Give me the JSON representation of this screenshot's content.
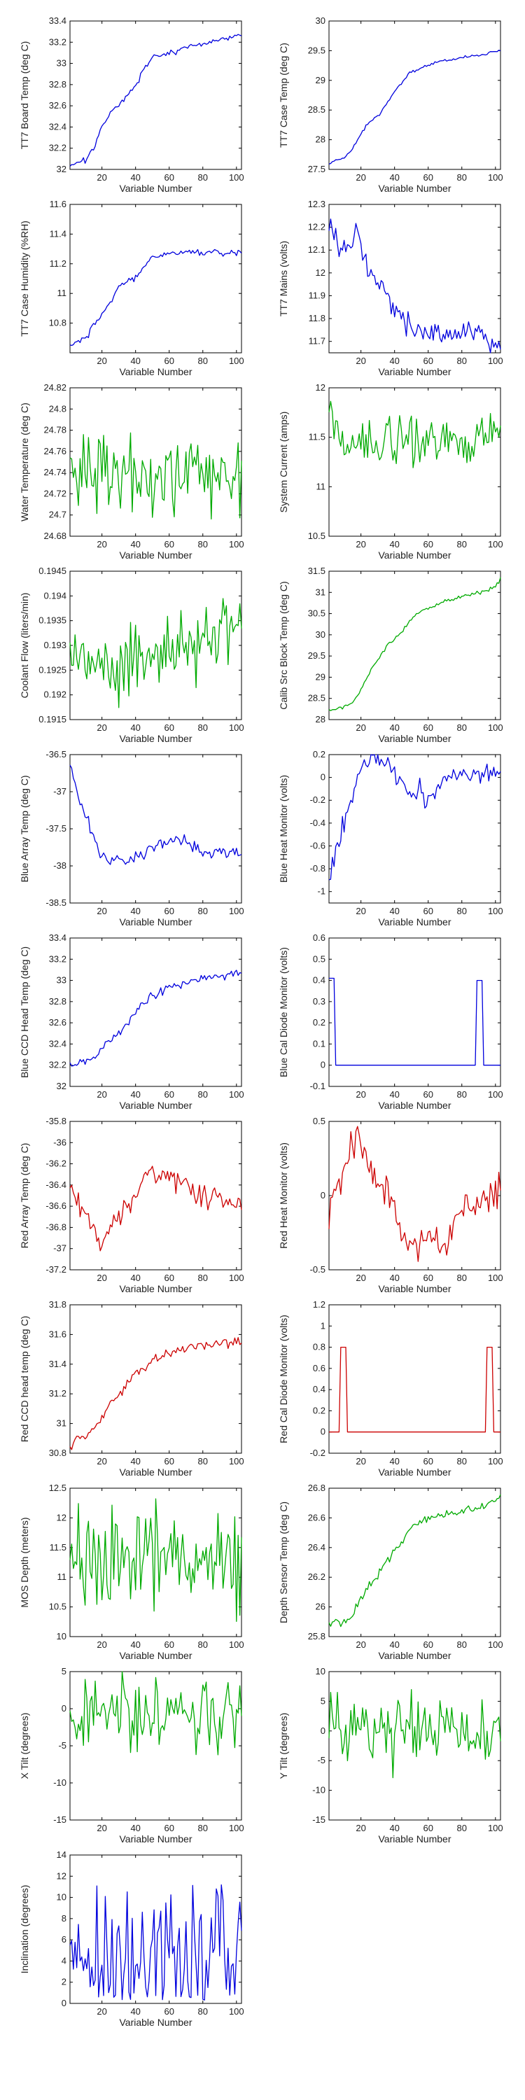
{
  "figure": {
    "background": "#ffffff",
    "layout": "2 columns x 11 rows of line plots"
  },
  "chart_data": [
    {
      "type": "line",
      "xlabel": "Variable Number",
      "ylabel": "TT7 Board Temp (deg C)",
      "color": "#0000dd",
      "xlim": [
        1,
        103
      ],
      "ylim": [
        32,
        33.4
      ],
      "xticks": [
        20,
        40,
        60,
        80,
        100
      ],
      "yticks": [
        32,
        32.2,
        32.4,
        32.6,
        32.8,
        33,
        33.2,
        33.4
      ],
      "x": [
        1,
        5,
        10,
        15,
        20,
        25,
        30,
        35,
        40,
        45,
        50,
        55,
        60,
        65,
        70,
        75,
        80,
        85,
        90,
        95,
        100,
        103
      ],
      "y": [
        32.03,
        32.07,
        32.1,
        32.2,
        32.4,
        32.55,
        32.6,
        32.7,
        32.8,
        32.95,
        33.05,
        33.07,
        33.1,
        33.12,
        33.15,
        33.17,
        33.18,
        33.2,
        33.22,
        33.24,
        33.26,
        33.27
      ],
      "noise": 0.012
    },
    {
      "type": "line",
      "xlabel": "Variable Number",
      "ylabel": "TT7 Case Temp (deg C)",
      "color": "#0000dd",
      "xlim": [
        1,
        103
      ],
      "ylim": [
        27.5,
        30
      ],
      "xticks": [
        20,
        40,
        60,
        80,
        100
      ],
      "yticks": [
        27.5,
        28,
        28.5,
        29,
        29.5,
        30
      ],
      "x": [
        1,
        5,
        10,
        15,
        20,
        25,
        30,
        35,
        40,
        45,
        50,
        55,
        60,
        65,
        70,
        75,
        80,
        85,
        90,
        95,
        100,
        103
      ],
      "y": [
        27.6,
        27.65,
        27.7,
        27.85,
        28.1,
        28.3,
        28.4,
        28.6,
        28.8,
        29.0,
        29.15,
        29.2,
        29.25,
        29.3,
        29.33,
        29.36,
        29.38,
        29.41,
        29.43,
        29.46,
        29.49,
        29.5
      ],
      "noise": 0.012
    },
    {
      "type": "line",
      "xlabel": "Variable Number",
      "ylabel": "TT7 Case Humidity (%RH)",
      "color": "#0000dd",
      "xlim": [
        1,
        103
      ],
      "ylim": [
        10.6,
        11.6
      ],
      "xticks": [
        20,
        40,
        60,
        80,
        100
      ],
      "yticks": [
        10.8,
        11,
        11.2,
        11.4,
        11.6
      ],
      "x": [
        1,
        5,
        10,
        15,
        20,
        25,
        30,
        35,
        40,
        45,
        50,
        55,
        60,
        65,
        70,
        75,
        80,
        85,
        90,
        95,
        100,
        103
      ],
      "y": [
        10.65,
        10.67,
        10.7,
        10.8,
        10.85,
        10.95,
        11.05,
        11.08,
        11.1,
        11.18,
        11.24,
        11.26,
        11.28,
        11.27,
        11.28,
        11.28,
        11.27,
        11.28,
        11.27,
        11.28,
        11.27,
        11.27
      ],
      "noise": 0.01
    },
    {
      "type": "line",
      "xlabel": "Variable Number",
      "ylabel": "TT7 Mains  (volts)",
      "color": "#0000dd",
      "xlim": [
        1,
        103
      ],
      "ylim": [
        11.65,
        12.3
      ],
      "xticks": [
        20,
        40,
        60,
        80,
        100
      ],
      "yticks": [
        11.7,
        11.8,
        11.9,
        12,
        12.1,
        12.2,
        12.3
      ],
      "x": [
        1,
        5,
        10,
        15,
        18,
        22,
        26,
        30,
        35,
        40,
        45,
        50,
        55,
        60,
        70,
        80,
        90,
        100,
        103
      ],
      "y": [
        12.2,
        12.15,
        12.12,
        12.12,
        12.2,
        12.05,
        12.0,
        11.95,
        11.9,
        11.85,
        11.8,
        11.75,
        11.76,
        11.73,
        11.74,
        11.75,
        11.72,
        11.7,
        11.7
      ],
      "noise": 0.025
    },
    {
      "type": "line",
      "xlabel": "Variable Number",
      "ylabel": "Water Temperature (deg C)",
      "color": "#00aa00",
      "xlim": [
        1,
        103
      ],
      "ylim": [
        24.68,
        24.82
      ],
      "xticks": [
        20,
        40,
        60,
        80,
        100
      ],
      "yticks": [
        24.68,
        24.7,
        24.72,
        24.74,
        24.76,
        24.78,
        24.8,
        24.82
      ],
      "x": [
        1,
        103
      ],
      "y": [
        24.745,
        24.74
      ],
      "noise": 0.018
    },
    {
      "type": "line",
      "xlabel": "Variable Number",
      "ylabel": "System Current (amps)",
      "color": "#00aa00",
      "xlim": [
        1,
        103
      ],
      "ylim": [
        10.5,
        12
      ],
      "xticks": [
        20,
        40,
        60,
        80,
        100
      ],
      "yticks": [
        10.5,
        11,
        11.5,
        12
      ],
      "x": [
        1,
        5,
        10,
        15,
        20,
        30,
        40,
        50,
        60,
        70,
        80,
        90,
        100,
        103
      ],
      "y": [
        11.8,
        11.6,
        11.5,
        11.3,
        11.45,
        11.5,
        11.45,
        11.5,
        11.45,
        11.5,
        11.45,
        11.5,
        11.55,
        11.6
      ],
      "noise": 0.12
    },
    {
      "type": "line",
      "xlabel": "Variable Number",
      "ylabel": "Coolant Flow (liters/min)",
      "color": "#00aa00",
      "xlim": [
        1,
        103
      ],
      "ylim": [
        0.1915,
        0.1945
      ],
      "xticks": [
        20,
        40,
        60,
        80,
        100
      ],
      "yticks": [
        0.1915,
        0.192,
        0.1925,
        0.193,
        0.1935,
        0.194,
        0.1945
      ],
      "x": [
        1,
        20,
        40,
        50,
        60,
        70,
        80,
        90,
        100,
        103
      ],
      "y": [
        0.1928,
        0.1926,
        0.1927,
        0.1928,
        0.1929,
        0.193,
        0.1932,
        0.1933,
        0.1933,
        0.1932
      ],
      "noise": 0.00035
    },
    {
      "type": "line",
      "xlabel": "Variable Number",
      "ylabel": "Calib Src Block Temp (deg C)",
      "color": "#00aa00",
      "xlim": [
        1,
        103
      ],
      "ylim": [
        28,
        31.5
      ],
      "xticks": [
        20,
        40,
        60,
        80,
        100
      ],
      "yticks": [
        28,
        28.5,
        29,
        29.5,
        30,
        30.5,
        31,
        31.5
      ],
      "x": [
        1,
        5,
        10,
        15,
        20,
        25,
        30,
        35,
        40,
        45,
        50,
        55,
        60,
        65,
        70,
        75,
        80,
        85,
        90,
        95,
        100,
        103
      ],
      "y": [
        28.2,
        28.25,
        28.3,
        28.4,
        28.7,
        29.1,
        29.4,
        29.7,
        29.9,
        30.1,
        30.35,
        30.55,
        30.65,
        30.7,
        30.8,
        30.85,
        30.9,
        30.95,
        31.0,
        31.05,
        31.15,
        31.35
      ],
      "noise": 0.02
    },
    {
      "type": "line",
      "xlabel": "Variable Number",
      "ylabel": "Blue Array Temp (deg C)",
      "color": "#0000dd",
      "xlim": [
        1,
        103
      ],
      "ylim": [
        -38.5,
        -36.5
      ],
      "xticks": [
        20,
        40,
        60,
        80,
        100
      ],
      "yticks": [
        -38.5,
        -38,
        -37.5,
        -37,
        -36.5
      ],
      "x": [
        1,
        5,
        10,
        15,
        20,
        25,
        30,
        35,
        40,
        50,
        60,
        65,
        70,
        75,
        80,
        90,
        100,
        103
      ],
      "y": [
        -36.6,
        -37.0,
        -37.3,
        -37.6,
        -37.85,
        -37.95,
        -37.9,
        -37.95,
        -37.85,
        -37.75,
        -37.65,
        -37.6,
        -37.7,
        -37.75,
        -37.8,
        -37.8,
        -37.85,
        -37.85
      ],
      "noise": 0.04
    },
    {
      "type": "line",
      "xlabel": "Variable Number",
      "ylabel": "Blue Heat Monitor (volts)",
      "color": "#0000dd",
      "xlim": [
        1,
        103
      ],
      "ylim": [
        -1.1,
        0.2
      ],
      "xticks": [
        20,
        40,
        60,
        80,
        100
      ],
      "yticks": [
        -1,
        -0.8,
        -0.6,
        -0.4,
        -0.2,
        0,
        0.2
      ],
      "x": [
        1,
        4,
        8,
        12,
        16,
        20,
        25,
        30,
        35,
        40,
        45,
        50,
        55,
        60,
        65,
        70,
        75,
        80,
        90,
        100,
        103
      ],
      "y": [
        -0.9,
        -0.75,
        -0.5,
        -0.3,
        -0.1,
        0.1,
        0.15,
        0.16,
        0.14,
        0.05,
        -0.1,
        -0.15,
        -0.1,
        -0.2,
        -0.1,
        0,
        0.02,
        0.03,
        0.04,
        0.05,
        0.06
      ],
      "noise": 0.04
    },
    {
      "type": "line",
      "xlabel": "Variable Number",
      "ylabel": "Blue CCD Head Temp (deg C)",
      "color": "#0000dd",
      "xlim": [
        1,
        103
      ],
      "ylim": [
        32,
        33.4
      ],
      "xticks": [
        20,
        40,
        60,
        80,
        100
      ],
      "yticks": [
        32,
        32.2,
        32.4,
        32.6,
        32.8,
        33,
        33.2,
        33.4
      ],
      "x": [
        1,
        5,
        10,
        15,
        20,
        25,
        30,
        35,
        40,
        45,
        50,
        55,
        60,
        65,
        70,
        75,
        80,
        85,
        90,
        95,
        100,
        103
      ],
      "y": [
        32.2,
        32.21,
        32.23,
        32.27,
        32.35,
        32.45,
        32.5,
        32.6,
        32.7,
        32.8,
        32.86,
        32.9,
        32.94,
        32.96,
        32.98,
        33.0,
        33.02,
        33.03,
        33.04,
        33.06,
        33.07,
        33.08
      ],
      "noise": 0.02
    },
    {
      "type": "line",
      "xlabel": "Variable Number",
      "ylabel": "Blue Cal Diode Monitor (volts)",
      "color": "#0000dd",
      "xlim": [
        1,
        103
      ],
      "ylim": [
        -0.1,
        0.6
      ],
      "xticks": [
        20,
        40,
        60,
        80,
        100
      ],
      "yticks": [
        -0.1,
        0,
        0.1,
        0.2,
        0.3,
        0.4,
        0.5,
        0.6
      ],
      "x": [
        1,
        4,
        5,
        88,
        89,
        92,
        93,
        103
      ],
      "y": [
        0.41,
        0.41,
        0,
        0,
        0.4,
        0.4,
        0,
        0
      ],
      "noise": 0
    },
    {
      "type": "line",
      "xlabel": "Variable Number",
      "ylabel": "Red Array Temp (deg C)",
      "color": "#cc0000",
      "xlim": [
        1,
        103
      ],
      "ylim": [
        -37.2,
        -35.8
      ],
      "xticks": [
        20,
        40,
        60,
        80,
        100
      ],
      "yticks": [
        -37.2,
        -37,
        -36.8,
        -36.6,
        -36.4,
        -36.2,
        -36,
        -35.8
      ],
      "x": [
        1,
        5,
        10,
        15,
        20,
        25,
        30,
        35,
        40,
        45,
        50,
        55,
        60,
        65,
        70,
        75,
        80,
        85,
        90,
        95,
        100,
        103
      ],
      "y": [
        -36.4,
        -36.5,
        -36.7,
        -36.8,
        -37.0,
        -36.8,
        -36.7,
        -36.6,
        -36.5,
        -36.3,
        -36.25,
        -36.3,
        -36.3,
        -36.35,
        -36.4,
        -36.45,
        -36.5,
        -36.5,
        -36.55,
        -36.6,
        -36.55,
        -36.6
      ],
      "noise": 0.05
    },
    {
      "type": "line",
      "xlabel": "Variable Number",
      "ylabel": "Red Heat Monitor (volts)",
      "color": "#cc0000",
      "xlim": [
        1,
        103
      ],
      "ylim": [
        -0.5,
        0.5
      ],
      "xticks": [
        20,
        40,
        60,
        80,
        100
      ],
      "yticks": [
        -0.5,
        0,
        0.5
      ],
      "x": [
        1,
        5,
        10,
        15,
        18,
        22,
        26,
        30,
        35,
        40,
        45,
        50,
        55,
        60,
        65,
        70,
        75,
        80,
        85,
        90,
        95,
        100,
        103
      ],
      "y": [
        -0.1,
        0.05,
        0.15,
        0.35,
        0.42,
        0.3,
        0.2,
        0.1,
        0.05,
        -0.1,
        -0.25,
        -0.35,
        -0.3,
        -0.3,
        -0.25,
        -0.35,
        -0.2,
        -0.1,
        -0.05,
        -0.05,
        0,
        0.02,
        0.03
      ],
      "noise": 0.05
    },
    {
      "type": "line",
      "xlabel": "Variable Number",
      "ylabel": "Red CCD head temp (deg C)",
      "color": "#cc0000",
      "xlim": [
        1,
        103
      ],
      "ylim": [
        30.8,
        31.8
      ],
      "xticks": [
        20,
        40,
        60,
        80,
        100
      ],
      "yticks": [
        30.8,
        31,
        31.2,
        31.4,
        31.6,
        31.8
      ],
      "x": [
        1,
        5,
        10,
        15,
        20,
        25,
        30,
        35,
        40,
        45,
        50,
        55,
        60,
        65,
        70,
        75,
        80,
        85,
        90,
        95,
        100,
        103
      ],
      "y": [
        30.85,
        30.9,
        30.92,
        30.95,
        31.05,
        31.15,
        31.2,
        31.28,
        31.33,
        31.38,
        31.42,
        31.45,
        31.47,
        31.5,
        31.5,
        31.52,
        31.52,
        31.53,
        31.53,
        31.55,
        31.56,
        31.57
      ],
      "noise": 0.015
    },
    {
      "type": "line",
      "xlabel": "Variable Number",
      "ylabel": "Red Cal Diode Monitor (volts)",
      "color": "#cc0000",
      "xlim": [
        1,
        103
      ],
      "ylim": [
        -0.2,
        1.2
      ],
      "xticks": [
        20,
        40,
        60,
        80,
        100
      ],
      "yticks": [
        -0.2,
        0,
        0.2,
        0.4,
        0.6,
        0.8,
        1,
        1.2
      ],
      "x": [
        1,
        7,
        8,
        11,
        12,
        94,
        95,
        98,
        99,
        103
      ],
      "y": [
        0,
        0,
        0.8,
        0.8,
        0,
        0,
        0.8,
        0.8,
        0,
        0
      ],
      "noise": 0
    },
    {
      "type": "line",
      "xlabel": "Variable Number",
      "ylabel": "MOS Depth  (meters)",
      "color": "#00aa00",
      "xlim": [
        1,
        103
      ],
      "ylim": [
        10,
        12.5
      ],
      "xticks": [
        20,
        40,
        60,
        80,
        100
      ],
      "yticks": [
        10,
        10.5,
        11,
        11.5,
        12,
        12.5
      ],
      "x": [
        1,
        103
      ],
      "y": [
        11.35,
        11.35
      ],
      "noise": 0.45
    },
    {
      "type": "line",
      "xlabel": "Variable Number",
      "ylabel": "Depth Sensor Temp (deg C)",
      "color": "#00aa00",
      "xlim": [
        1,
        103
      ],
      "ylim": [
        25.8,
        26.8
      ],
      "xticks": [
        20,
        40,
        60,
        80,
        100
      ],
      "yticks": [
        25.8,
        26,
        26.2,
        26.4,
        26.6,
        26.8
      ],
      "x": [
        1,
        5,
        10,
        15,
        20,
        25,
        30,
        35,
        40,
        45,
        50,
        55,
        60,
        65,
        70,
        75,
        80,
        85,
        90,
        95,
        100,
        103
      ],
      "y": [
        25.88,
        25.9,
        25.9,
        25.95,
        26.05,
        26.15,
        26.22,
        26.3,
        26.38,
        26.45,
        26.52,
        26.58,
        26.6,
        26.62,
        26.63,
        26.64,
        26.65,
        26.66,
        26.67,
        26.69,
        26.72,
        26.75
      ],
      "noise": 0.015
    },
    {
      "type": "line",
      "xlabel": "Variable Number",
      "ylabel": "X Tilt  (degrees)",
      "color": "#00aa00",
      "xlim": [
        1,
        103
      ],
      "ylim": [
        -15,
        5
      ],
      "xticks": [
        20,
        40,
        60,
        80,
        100
      ],
      "yticks": [
        -15,
        -10,
        -5,
        0,
        5
      ],
      "x": [
        1,
        103
      ],
      "y": [
        -0.5,
        -0.5
      ],
      "noise": 2.3
    },
    {
      "type": "line",
      "xlabel": "Variable Number",
      "ylabel": "Y Tilt  (degrees)",
      "color": "#00aa00",
      "xlim": [
        1,
        103
      ],
      "ylim": [
        -15,
        10
      ],
      "xticks": [
        20,
        40,
        60,
        80,
        100
      ],
      "yticks": [
        -15,
        -10,
        -5,
        0,
        5,
        10
      ],
      "x": [
        1,
        103
      ],
      "y": [
        1,
        0.5
      ],
      "noise": 2.8
    },
    {
      "type": "line",
      "xlabel": "Variable Number",
      "ylabel": "Inclination  (degrees)",
      "color": "#0000dd",
      "xlim": [
        1,
        103
      ],
      "ylim": [
        0,
        14
      ],
      "xticks": [
        20,
        40,
        60,
        80,
        100
      ],
      "yticks": [
        0,
        2,
        4,
        6,
        8,
        10,
        12,
        14
      ],
      "x": [
        1,
        103
      ],
      "y": [
        4.5,
        4.5
      ],
      "noise": 3.0,
      "floor": 0.3
    }
  ]
}
